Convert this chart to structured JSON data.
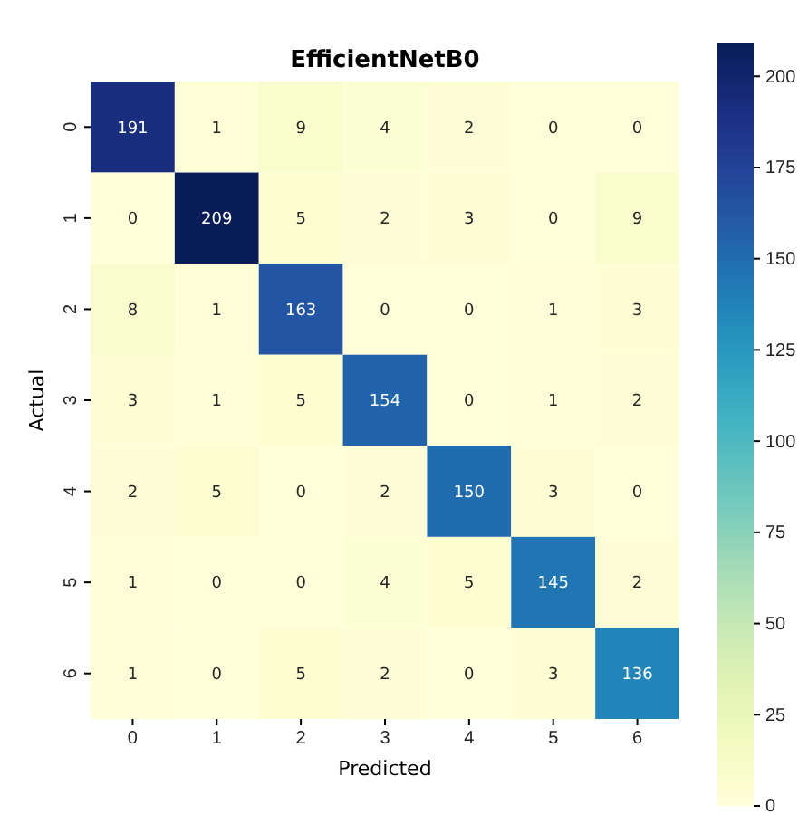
{
  "chart_data": {
    "type": "heatmap",
    "title": "EfficientNetB0",
    "xlabel": "Predicted",
    "ylabel": "Actual",
    "categories": [
      "0",
      "1",
      "2",
      "3",
      "4",
      "5",
      "6"
    ],
    "y_categories": [
      "0",
      "1",
      "2",
      "3",
      "4",
      "5",
      "6"
    ],
    "cells": [
      [
        191,
        1,
        9,
        4,
        2,
        0,
        0
      ],
      [
        0,
        209,
        5,
        2,
        3,
        0,
        9
      ],
      [
        8,
        1,
        163,
        0,
        0,
        1,
        3
      ],
      [
        3,
        1,
        5,
        154,
        0,
        1,
        2
      ],
      [
        2,
        5,
        0,
        2,
        150,
        3,
        0
      ],
      [
        1,
        0,
        0,
        4,
        5,
        145,
        2
      ],
      [
        1,
        0,
        5,
        2,
        0,
        3,
        136
      ]
    ],
    "clim": [
      0,
      209
    ],
    "cticks": [
      0,
      25,
      50,
      75,
      100,
      125,
      150,
      175,
      200
    ],
    "data_labels": true
  }
}
